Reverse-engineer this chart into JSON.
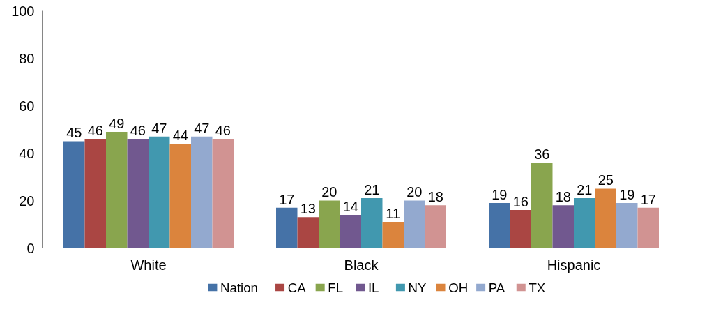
{
  "chart_data": {
    "type": "bar",
    "categories": [
      "White",
      "Black",
      "Hispanic"
    ],
    "ylim": [
      0,
      100
    ],
    "yticks": [
      0,
      20,
      40,
      60,
      80,
      100
    ],
    "grid": false,
    "legend": "bottom",
    "data_labels": true,
    "series": [
      {
        "name": "Nation",
        "color": "#4572a7",
        "values": [
          45,
          17,
          19
        ]
      },
      {
        "name": "CA",
        "color": "#aa4643",
        "values": [
          46,
          13,
          16
        ]
      },
      {
        "name": "FL",
        "color": "#89a54e",
        "values": [
          49,
          20,
          36
        ]
      },
      {
        "name": "IL",
        "color": "#71588f",
        "values": [
          46,
          14,
          18
        ]
      },
      {
        "name": "NY",
        "color": "#4198af",
        "values": [
          47,
          21,
          21
        ]
      },
      {
        "name": "OH",
        "color": "#db843d",
        "values": [
          44,
          11,
          25
        ]
      },
      {
        "name": "PA",
        "color": "#93a9cf",
        "values": [
          47,
          20,
          19
        ]
      },
      {
        "name": "TX",
        "color": "#d19392",
        "values": [
          46,
          18,
          17
        ]
      }
    ]
  }
}
